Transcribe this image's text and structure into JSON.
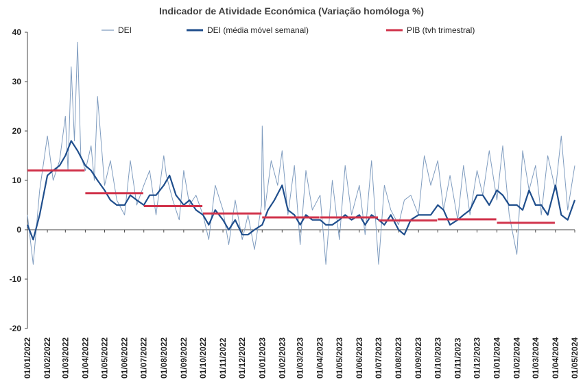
{
  "chart_data": {
    "type": "line",
    "title": "Indicador de Atividade Económica (Variação homóloga %)",
    "xlabel": "",
    "ylabel": "",
    "ylim": [
      -20,
      40
    ],
    "yticks": [
      -20,
      -10,
      0,
      10,
      20,
      30,
      40
    ],
    "xlim": [
      "2022-01-01",
      "2024-05-01"
    ],
    "xtick_labels": [
      "01/01/2022",
      "01/02/2022",
      "01/03/2022",
      "01/04/2022",
      "01/05/2022",
      "01/06/2022",
      "01/07/2022",
      "01/08/2022",
      "01/09/2022",
      "01/10/2022",
      "01/11/2022",
      "01/12/2022",
      "01/01/2023",
      "01/02/2023",
      "01/03/2023",
      "01/04/2023",
      "01/05/2023",
      "01/06/2023",
      "01/07/2023",
      "01/08/2023",
      "01/09/2023",
      "01/10/2023",
      "01/11/2023",
      "01/12/2023",
      "01/01/2024",
      "01/02/2024",
      "01/03/2024",
      "01/04/2024",
      "01/05/2024"
    ],
    "grid": false,
    "legend_position": "top",
    "series": [
      {
        "name": "DEI",
        "color": "#7f9cbf",
        "style": "thin-line",
        "x": [
          "2022-01-01",
          "2022-01-10",
          "2022-01-20",
          "2022-02-01",
          "2022-02-10",
          "2022-02-20",
          "2022-03-01",
          "2022-03-05",
          "2022-03-10",
          "2022-03-15",
          "2022-03-20",
          "2022-03-25",
          "2022-04-01",
          "2022-04-10",
          "2022-04-15",
          "2022-04-20",
          "2022-05-01",
          "2022-05-10",
          "2022-05-20",
          "2022-06-01",
          "2022-06-10",
          "2022-06-20",
          "2022-07-01",
          "2022-07-10",
          "2022-07-20",
          "2022-08-01",
          "2022-08-05",
          "2022-08-15",
          "2022-08-25",
          "2022-09-01",
          "2022-09-10",
          "2022-09-20",
          "2022-10-01",
          "2022-10-10",
          "2022-10-20",
          "2022-11-01",
          "2022-11-10",
          "2022-11-20",
          "2022-12-01",
          "2022-12-10",
          "2022-12-20",
          "2022-12-31",
          "2023-01-01",
          "2023-01-05",
          "2023-01-15",
          "2023-01-25",
          "2023-02-01",
          "2023-02-10",
          "2023-02-20",
          "2023-03-01",
          "2023-03-10",
          "2023-03-20",
          "2023-04-01",
          "2023-04-10",
          "2023-04-20",
          "2023-05-01",
          "2023-05-10",
          "2023-05-20",
          "2023-06-01",
          "2023-06-10",
          "2023-06-20",
          "2023-07-01",
          "2023-07-10",
          "2023-07-20",
          "2023-08-01",
          "2023-08-10",
          "2023-08-20",
          "2023-09-01",
          "2023-09-10",
          "2023-09-20",
          "2023-10-01",
          "2023-10-10",
          "2023-10-20",
          "2023-11-01",
          "2023-11-10",
          "2023-11-20",
          "2023-12-01",
          "2023-12-10",
          "2023-12-20",
          "2024-01-01",
          "2024-01-10",
          "2024-01-20",
          "2024-02-01",
          "2024-02-10",
          "2024-02-20",
          "2024-03-01",
          "2024-03-10",
          "2024-03-20",
          "2024-04-01",
          "2024-04-10",
          "2024-04-20",
          "2024-05-01"
        ],
        "values": [
          3,
          -7,
          8,
          19,
          10,
          14,
          23,
          12,
          33,
          18,
          38,
          15,
          12,
          17,
          10,
          27,
          9,
          14,
          6,
          3,
          14,
          5,
          9,
          12,
          3,
          15,
          11,
          6,
          2,
          12,
          5,
          7,
          3,
          -2,
          9,
          4,
          -3,
          6,
          -2,
          3,
          -4,
          5,
          21,
          4,
          14,
          9,
          16,
          3,
          13,
          -3,
          12,
          4,
          7,
          -7,
          10,
          -2,
          13,
          3,
          9,
          -1,
          14,
          -7,
          9,
          4,
          1,
          6,
          7,
          3,
          15,
          9,
          14,
          4,
          11,
          2,
          13,
          3,
          12,
          7,
          16,
          6,
          17,
          3,
          -5,
          16,
          8,
          13,
          3,
          15,
          8,
          19,
          4,
          13
        ]
      },
      {
        "name": "DEI (média móvel semanal)",
        "color": "#1f4e8c",
        "style": "thick-line",
        "x": [
          "2022-01-01",
          "2022-01-10",
          "2022-01-20",
          "2022-02-01",
          "2022-02-10",
          "2022-02-20",
          "2022-03-01",
          "2022-03-10",
          "2022-03-20",
          "2022-04-01",
          "2022-04-10",
          "2022-04-20",
          "2022-05-01",
          "2022-05-10",
          "2022-05-20",
          "2022-06-01",
          "2022-06-10",
          "2022-06-20",
          "2022-07-01",
          "2022-07-10",
          "2022-07-20",
          "2022-08-01",
          "2022-08-10",
          "2022-08-20",
          "2022-09-01",
          "2022-09-10",
          "2022-09-20",
          "2022-10-01",
          "2022-10-10",
          "2022-10-20",
          "2022-11-01",
          "2022-11-10",
          "2022-11-20",
          "2022-12-01",
          "2022-12-10",
          "2022-12-20",
          "2023-01-01",
          "2023-01-10",
          "2023-01-20",
          "2023-02-01",
          "2023-02-10",
          "2023-02-20",
          "2023-03-01",
          "2023-03-10",
          "2023-03-20",
          "2023-04-01",
          "2023-04-10",
          "2023-04-20",
          "2023-05-01",
          "2023-05-10",
          "2023-05-20",
          "2023-06-01",
          "2023-06-10",
          "2023-06-20",
          "2023-07-01",
          "2023-07-10",
          "2023-07-20",
          "2023-08-01",
          "2023-08-10",
          "2023-08-20",
          "2023-09-01",
          "2023-09-10",
          "2023-09-20",
          "2023-10-01",
          "2023-10-10",
          "2023-10-20",
          "2023-11-01",
          "2023-11-10",
          "2023-11-20",
          "2023-12-01",
          "2023-12-10",
          "2023-12-20",
          "2024-01-01",
          "2024-01-10",
          "2024-01-20",
          "2024-02-01",
          "2024-02-10",
          "2024-02-20",
          "2024-03-01",
          "2024-03-10",
          "2024-03-20",
          "2024-04-01",
          "2024-04-10",
          "2024-04-20",
          "2024-05-01"
        ],
        "values": [
          1,
          -2,
          3,
          11,
          12,
          13,
          15,
          18,
          16,
          13,
          12,
          10,
          8,
          6,
          5,
          5,
          7,
          6,
          5,
          7,
          7,
          9,
          11,
          7,
          5,
          6,
          4,
          3,
          1,
          4,
          2,
          0,
          2,
          -1,
          -1,
          0,
          1,
          4,
          6,
          9,
          4,
          3,
          1,
          3,
          2,
          2,
          1,
          1,
          2,
          3,
          2,
          3,
          1,
          3,
          2,
          1,
          3,
          0,
          -1,
          2,
          3,
          3,
          3,
          5,
          4,
          1,
          2,
          3,
          4,
          7,
          7,
          5,
          8,
          7,
          5,
          5,
          4,
          8,
          5,
          5,
          3,
          9,
          3,
          2,
          6
        ]
      },
      {
        "name": "PIB (tvh trimestral)",
        "color": "#d0324a",
        "style": "step",
        "segments": [
          {
            "start": "2022-01-01",
            "end": "2022-03-31",
            "value": 12.0
          },
          {
            "start": "2022-04-01",
            "end": "2022-06-30",
            "value": 7.4
          },
          {
            "start": "2022-07-01",
            "end": "2022-09-30",
            "value": 4.8
          },
          {
            "start": "2022-10-01",
            "end": "2022-12-31",
            "value": 3.3
          },
          {
            "start": "2023-01-01",
            "end": "2023-03-31",
            "value": 2.5
          },
          {
            "start": "2023-04-01",
            "end": "2023-06-30",
            "value": 2.5
          },
          {
            "start": "2023-07-01",
            "end": "2023-09-30",
            "value": 1.9
          },
          {
            "start": "2023-10-01",
            "end": "2023-12-31",
            "value": 2.1
          },
          {
            "start": "2024-01-01",
            "end": "2024-03-31",
            "value": 1.4
          }
        ]
      }
    ]
  }
}
